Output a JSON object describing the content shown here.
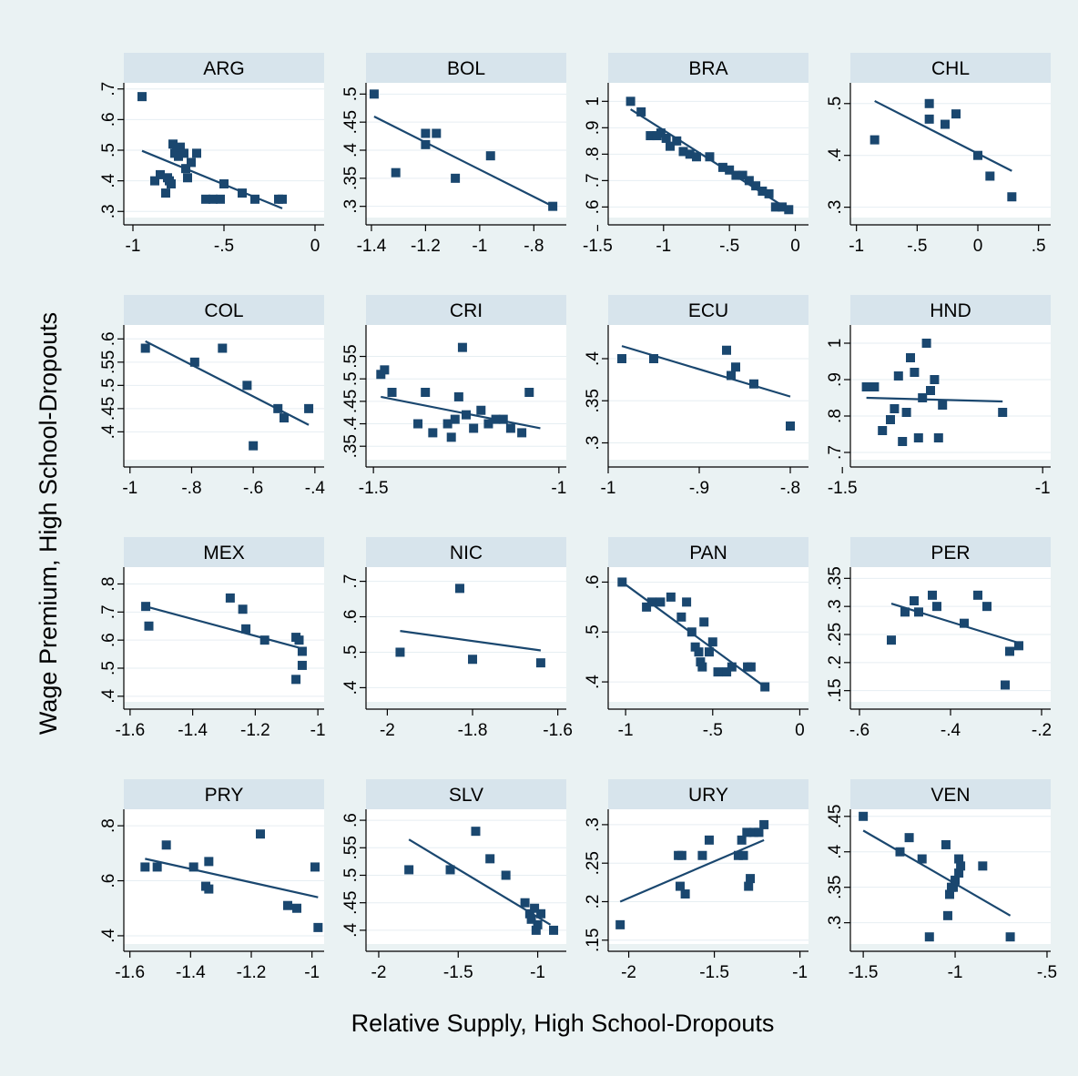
{
  "figure": {
    "ylabel": "Wage Premium, High School-Dropouts",
    "xlabel": "Relative Supply, High School-Dropouts",
    "colors": {
      "background": "#eaf2f3",
      "plot_bg": "#ffffff",
      "header_bg": "#d7e4ec",
      "marker": "#1a476f",
      "line": "#1a476f",
      "grid": "#e6eef2",
      "axis": "#000000"
    }
  },
  "chart_data": [
    {
      "type": "scatter",
      "title": "ARG",
      "xlim": [
        -1.05,
        0.05
      ],
      "ylim": [
        0.28,
        0.72
      ],
      "xticks": [
        -1,
        -0.5,
        0
      ],
      "xtick_labels": [
        "-1",
        "-.5",
        "0"
      ],
      "yticks": [
        0.3,
        0.4,
        0.5,
        0.6,
        0.7
      ],
      "ytick_labels": [
        ".3",
        ".4",
        ".5",
        ".6",
        ".7"
      ],
      "x": [
        -0.95,
        -0.88,
        -0.85,
        -0.82,
        -0.81,
        -0.8,
        -0.79,
        -0.78,
        -0.77,
        -0.76,
        -0.75,
        -0.74,
        -0.72,
        -0.71,
        -0.7,
        -0.68,
        -0.65,
        -0.6,
        -0.56,
        -0.52,
        -0.5,
        -0.4,
        -0.33,
        -0.2,
        -0.18
      ],
      "y": [
        0.675,
        0.4,
        0.42,
        0.36,
        0.41,
        0.4,
        0.39,
        0.52,
        0.49,
        0.5,
        0.48,
        0.51,
        0.49,
        0.44,
        0.41,
        0.46,
        0.49,
        0.34,
        0.34,
        0.34,
        0.39,
        0.36,
        0.34,
        0.34,
        0.34
      ],
      "fit": {
        "x": [
          -0.95,
          -0.18
        ],
        "y": [
          0.498,
          0.31
        ]
      }
    },
    {
      "type": "scatter",
      "title": "BOL",
      "xlim": [
        -1.42,
        -0.68
      ],
      "ylim": [
        0.28,
        0.52
      ],
      "xticks": [
        -1.4,
        -1.2,
        -1,
        -0.8
      ],
      "xtick_labels": [
        "-1.4",
        "-1.2",
        "-1",
        "-.8"
      ],
      "yticks": [
        0.3,
        0.35,
        0.4,
        0.45,
        0.5
      ],
      "ytick_labels": [
        ".3",
        ".35",
        ".4",
        ".45",
        ".5"
      ],
      "x": [
        -1.39,
        -1.31,
        -1.2,
        -1.2,
        -1.16,
        -1.09,
        -0.96,
        -0.73
      ],
      "y": [
        0.5,
        0.36,
        0.41,
        0.43,
        0.43,
        0.35,
        0.39,
        0.3
      ],
      "fit": {
        "x": [
          -1.39,
          -0.73
        ],
        "y": [
          0.46,
          0.3
        ]
      }
    },
    {
      "type": "scatter",
      "title": "BRA",
      "xlim": [
        -1.42,
        0.1
      ],
      "ylim": [
        0.56,
        1.07
      ],
      "xticks": [
        -1.5,
        -1,
        -0.5,
        0
      ],
      "xtick_labels": [
        "-1.5",
        "-1",
        "-.5",
        "0"
      ],
      "yticks": [
        0.6,
        0.7,
        0.8,
        0.9,
        1.0
      ],
      "ytick_labels": [
        ".6",
        ".7",
        ".8",
        ".9",
        "1"
      ],
      "x": [
        -1.25,
        -1.17,
        -1.1,
        -1.05,
        -1.02,
        -0.98,
        -0.95,
        -0.9,
        -0.85,
        -0.8,
        -0.75,
        -0.65,
        -0.55,
        -0.5,
        -0.45,
        -0.4,
        -0.35,
        -0.3,
        -0.25,
        -0.2,
        -0.15,
        -0.1,
        -0.05
      ],
      "y": [
        1.0,
        0.96,
        0.87,
        0.87,
        0.88,
        0.86,
        0.83,
        0.85,
        0.81,
        0.8,
        0.79,
        0.79,
        0.75,
        0.74,
        0.72,
        0.72,
        0.7,
        0.68,
        0.66,
        0.65,
        0.6,
        0.6,
        0.59
      ],
      "fit": {
        "x": [
          -1.25,
          -0.05
        ],
        "y": [
          0.97,
          0.59
        ]
      }
    },
    {
      "type": "scatter",
      "title": "CHL",
      "xlim": [
        -1.05,
        0.6
      ],
      "ylim": [
        0.28,
        0.54
      ],
      "xticks": [
        -1,
        -0.5,
        0,
        0.5
      ],
      "xtick_labels": [
        "-1",
        "-.5",
        "0",
        ".5"
      ],
      "yticks": [
        0.3,
        0.4,
        0.5
      ],
      "ytick_labels": [
        ".3",
        ".4",
        ".5"
      ],
      "x": [
        -0.85,
        -0.4,
        -0.4,
        -0.27,
        -0.18,
        0.0,
        0.1,
        0.28
      ],
      "y": [
        0.43,
        0.5,
        0.47,
        0.46,
        0.48,
        0.4,
        0.36,
        0.32
      ],
      "fit": {
        "x": [
          -0.85,
          0.28
        ],
        "y": [
          0.505,
          0.37
        ]
      }
    },
    {
      "type": "scatter",
      "title": "COL",
      "xlim": [
        -1.02,
        -0.37
      ],
      "ylim": [
        0.34,
        0.63
      ],
      "xticks": [
        -1,
        -0.8,
        -0.6,
        -0.4
      ],
      "xtick_labels": [
        "-1",
        "-.8",
        "-.6",
        "-.4"
      ],
      "yticks": [
        0.4,
        0.45,
        0.5,
        0.55,
        0.6
      ],
      "ytick_labels": [
        ".4",
        ".45",
        ".5",
        ".55",
        ".6"
      ],
      "x": [
        -0.95,
        -0.79,
        -0.7,
        -0.62,
        -0.6,
        -0.52,
        -0.5,
        -0.42
      ],
      "y": [
        0.58,
        0.55,
        0.58,
        0.5,
        0.37,
        0.45,
        0.43,
        0.45
      ],
      "fit": {
        "x": [
          -0.95,
          -0.42
        ],
        "y": [
          0.595,
          0.415
        ]
      }
    },
    {
      "type": "scatter",
      "title": "CRI",
      "xlim": [
        -1.52,
        -0.98
      ],
      "ylim": [
        0.32,
        0.62
      ],
      "xticks": [
        -1.5,
        -1
      ],
      "xtick_labels": [
        "-1.5",
        "-1"
      ],
      "yticks": [
        0.35,
        0.4,
        0.45,
        0.5,
        0.55
      ],
      "ytick_labels": [
        ".35",
        ".4",
        ".45",
        ".5",
        ".55"
      ],
      "x": [
        -1.48,
        -1.47,
        -1.45,
        -1.38,
        -1.36,
        -1.34,
        -1.3,
        -1.29,
        -1.28,
        -1.27,
        -1.26,
        -1.25,
        -1.23,
        -1.21,
        -1.19,
        -1.17,
        -1.15,
        -1.13,
        -1.1,
        -1.08
      ],
      "y": [
        0.51,
        0.52,
        0.47,
        0.4,
        0.47,
        0.38,
        0.4,
        0.37,
        0.41,
        0.46,
        0.57,
        0.42,
        0.39,
        0.43,
        0.4,
        0.41,
        0.41,
        0.39,
        0.38,
        0.47
      ],
      "fit": {
        "x": [
          -1.48,
          -1.05
        ],
        "y": [
          0.46,
          0.39
        ]
      }
    },
    {
      "type": "scatter",
      "title": "ECU",
      "xlim": [
        -1.0,
        -0.78
      ],
      "ylim": [
        0.28,
        0.44
      ],
      "xticks": [
        -1,
        -0.9,
        -0.8
      ],
      "xtick_labels": [
        "-1",
        "-.9",
        "-.8"
      ],
      "yticks": [
        0.3,
        0.35,
        0.4
      ],
      "ytick_labels": [
        ".3",
        ".35",
        ".4"
      ],
      "x": [
        -0.985,
        -0.95,
        -0.87,
        -0.865,
        -0.86,
        -0.84,
        -0.8
      ],
      "y": [
        0.4,
        0.4,
        0.41,
        0.38,
        0.39,
        0.37,
        0.32
      ],
      "fit": {
        "x": [
          -0.985,
          -0.8
        ],
        "y": [
          0.415,
          0.355
        ]
      }
    },
    {
      "type": "scatter",
      "title": "HND",
      "xlim": [
        -1.48,
        -0.98
      ],
      "ylim": [
        0.68,
        1.05
      ],
      "xticks": [
        -1.5,
        -1
      ],
      "xtick_labels": [
        "-1.5",
        "-1"
      ],
      "yticks": [
        0.7,
        0.8,
        0.9,
        1.0
      ],
      "ytick_labels": [
        ".7",
        ".8",
        ".9",
        "1"
      ],
      "x": [
        -1.44,
        -1.42,
        -1.4,
        -1.38,
        -1.37,
        -1.36,
        -1.35,
        -1.34,
        -1.33,
        -1.32,
        -1.31,
        -1.3,
        -1.29,
        -1.28,
        -1.27,
        -1.26,
        -1.25,
        -1.1
      ],
      "y": [
        0.88,
        0.88,
        0.76,
        0.79,
        0.82,
        0.91,
        0.73,
        0.81,
        0.96,
        0.92,
        0.74,
        0.85,
        1.0,
        0.87,
        0.9,
        0.74,
        0.83,
        0.81
      ],
      "fit": {
        "x": [
          -1.44,
          -1.1
        ],
        "y": [
          0.85,
          0.84
        ]
      }
    },
    {
      "type": "scatter",
      "title": "MEX",
      "xlim": [
        -1.62,
        -0.98
      ],
      "ylim": [
        0.38,
        0.86
      ],
      "xticks": [
        -1.6,
        -1.4,
        -1.2,
        -1
      ],
      "xtick_labels": [
        "-1.6",
        "-1.4",
        "-1.2",
        "-1"
      ],
      "yticks": [
        0.4,
        0.5,
        0.6,
        0.7,
        0.8
      ],
      "ytick_labels": [
        ".4",
        ".5",
        ".6",
        ".7",
        ".8"
      ],
      "x": [
        -1.55,
        -1.54,
        -1.28,
        -1.24,
        -1.23,
        -1.17,
        -1.07,
        -1.06,
        -1.05,
        -1.05,
        -1.07
      ],
      "y": [
        0.72,
        0.65,
        0.75,
        0.71,
        0.64,
        0.6,
        0.61,
        0.6,
        0.56,
        0.51,
        0.46
      ],
      "fit": {
        "x": [
          -1.55,
          -1.05
        ],
        "y": [
          0.72,
          0.57
        ]
      }
    },
    {
      "type": "scatter",
      "title": "NIC",
      "xlim": [
        -2.05,
        -1.58
      ],
      "ylim": [
        0.36,
        0.74
      ],
      "xticks": [
        -2,
        -1.8,
        -1.6
      ],
      "xtick_labels": [
        "-2",
        "-1.8",
        "-1.6"
      ],
      "yticks": [
        0.4,
        0.5,
        0.6,
        0.7
      ],
      "ytick_labels": [
        ".4",
        ".5",
        ".6",
        ".7"
      ],
      "x": [
        -1.97,
        -1.83,
        -1.8,
        -1.64
      ],
      "y": [
        0.5,
        0.68,
        0.48,
        0.47
      ],
      "fit": {
        "x": [
          -1.97,
          -1.64
        ],
        "y": [
          0.56,
          0.505
        ]
      }
    },
    {
      "type": "scatter",
      "title": "PAN",
      "xlim": [
        -1.1,
        0.05
      ],
      "ylim": [
        0.36,
        0.63
      ],
      "xticks": [
        -1,
        -0.5,
        0
      ],
      "xtick_labels": [
        "-1",
        "-.5",
        "0"
      ],
      "yticks": [
        0.4,
        0.5,
        0.6
      ],
      "ytick_labels": [
        ".4",
        ".5",
        ".6"
      ],
      "x": [
        -1.02,
        -0.88,
        -0.85,
        -0.8,
        -0.74,
        -0.68,
        -0.65,
        -0.62,
        -0.6,
        -0.58,
        -0.57,
        -0.56,
        -0.55,
        -0.52,
        -0.5,
        -0.47,
        -0.42,
        -0.39,
        -0.3,
        -0.28,
        -0.2
      ],
      "y": [
        0.6,
        0.55,
        0.56,
        0.56,
        0.57,
        0.53,
        0.56,
        0.5,
        0.47,
        0.46,
        0.44,
        0.43,
        0.52,
        0.46,
        0.48,
        0.42,
        0.42,
        0.43,
        0.43,
        0.43,
        0.39
      ],
      "fit": {
        "x": [
          -1.02,
          -0.2
        ],
        "y": [
          0.6,
          0.39
        ]
      }
    },
    {
      "type": "scatter",
      "title": "PER",
      "xlim": [
        -0.62,
        -0.18
      ],
      "ylim": [
        0.13,
        0.37
      ],
      "xticks": [
        -0.6,
        -0.4,
        -0.2
      ],
      "xtick_labels": [
        "-.6",
        "-.4",
        "-.2"
      ],
      "yticks": [
        0.15,
        0.2,
        0.25,
        0.3,
        0.35
      ],
      "ytick_labels": [
        ".15",
        ".2",
        ".25",
        ".3",
        ".35"
      ],
      "x": [
        -0.53,
        -0.5,
        -0.48,
        -0.47,
        -0.44,
        -0.43,
        -0.37,
        -0.34,
        -0.32,
        -0.28,
        -0.27,
        -0.25
      ],
      "y": [
        0.24,
        0.29,
        0.31,
        0.29,
        0.32,
        0.3,
        0.27,
        0.32,
        0.3,
        0.16,
        0.22,
        0.23
      ],
      "fit": {
        "x": [
          -0.53,
          -0.25
        ],
        "y": [
          0.305,
          0.235
        ]
      }
    },
    {
      "type": "scatter",
      "title": "PRY",
      "xlim": [
        -1.62,
        -0.96
      ],
      "ylim": [
        0.37,
        0.86
      ],
      "xticks": [
        -1.6,
        -1.4,
        -1.2,
        -1
      ],
      "xtick_labels": [
        "-1.6",
        "-1.4",
        "-1.2",
        "-1"
      ],
      "yticks": [
        0.4,
        0.6,
        0.8
      ],
      "ytick_labels": [
        ".4",
        ".6",
        ".8"
      ],
      "x": [
        -1.55,
        -1.51,
        -1.48,
        -1.39,
        -1.35,
        -1.34,
        -1.34,
        -1.17,
        -1.08,
        -1.05,
        -0.99,
        -0.98
      ],
      "y": [
        0.65,
        0.65,
        0.73,
        0.65,
        0.58,
        0.57,
        0.67,
        0.77,
        0.51,
        0.5,
        0.65,
        0.43
      ],
      "fit": {
        "x": [
          -1.55,
          -0.98
        ],
        "y": [
          0.68,
          0.54
        ]
      }
    },
    {
      "type": "scatter",
      "title": "SLV",
      "xlim": [
        -2.08,
        -0.82
      ],
      "ylim": [
        0.375,
        0.62
      ],
      "xticks": [
        -2,
        -1.5,
        -1
      ],
      "xtick_labels": [
        "-2",
        "-1.5",
        "-1"
      ],
      "yticks": [
        0.4,
        0.45,
        0.5,
        0.55,
        0.6
      ],
      "ytick_labels": [
        ".4",
        ".45",
        ".5",
        ".55",
        ".6"
      ],
      "x": [
        -1.81,
        -1.55,
        -1.39,
        -1.3,
        -1.2,
        -1.08,
        -1.05,
        -1.04,
        -1.02,
        -1.01,
        -1.0,
        -0.98,
        -0.9
      ],
      "y": [
        0.51,
        0.51,
        0.58,
        0.53,
        0.5,
        0.45,
        0.43,
        0.42,
        0.44,
        0.4,
        0.41,
        0.43,
        0.4
      ],
      "fit": {
        "x": [
          -1.81,
          -0.92
        ],
        "y": [
          0.565,
          0.41
        ]
      }
    },
    {
      "type": "scatter",
      "title": "URY",
      "xlim": [
        -2.12,
        -0.95
      ],
      "ylim": [
        0.145,
        0.32
      ],
      "xticks": [
        -2,
        -1.5,
        -1
      ],
      "xtick_labels": [
        "-2",
        "-1.5",
        "-1"
      ],
      "yticks": [
        0.15,
        0.2,
        0.25,
        0.3
      ],
      "ytick_labels": [
        ".15",
        ".2",
        ".25",
        ".3"
      ],
      "x": [
        -2.05,
        -1.71,
        -1.7,
        -1.69,
        -1.67,
        -1.57,
        -1.53,
        -1.36,
        -1.34,
        -1.33,
        -1.31,
        -1.3,
        -1.29,
        -1.27,
        -1.24,
        -1.21
      ],
      "y": [
        0.17,
        0.26,
        0.22,
        0.26,
        0.21,
        0.26,
        0.28,
        0.26,
        0.28,
        0.26,
        0.29,
        0.22,
        0.23,
        0.29,
        0.29,
        0.3
      ],
      "fit": {
        "x": [
          -2.05,
          -1.21
        ],
        "y": [
          0.2,
          0.28
        ]
      }
    },
    {
      "type": "scatter",
      "title": "VEN",
      "xlim": [
        -1.57,
        -0.48
      ],
      "ylim": [
        0.27,
        0.46
      ],
      "xticks": [
        -1.5,
        -1,
        -0.5
      ],
      "xtick_labels": [
        "-1.5",
        "-1",
        "-.5"
      ],
      "yticks": [
        0.3,
        0.35,
        0.4,
        0.45
      ],
      "ytick_labels": [
        ".3",
        ".35",
        ".4",
        ".45"
      ],
      "x": [
        -1.5,
        -1.3,
        -1.25,
        -1.18,
        -1.14,
        -1.05,
        -1.04,
        -1.03,
        -1.02,
        -1.01,
        -1.0,
        -0.98,
        -0.98,
        -0.97,
        -0.85,
        -0.7
      ],
      "y": [
        0.45,
        0.4,
        0.42,
        0.39,
        0.28,
        0.41,
        0.31,
        0.34,
        0.35,
        0.35,
        0.36,
        0.37,
        0.39,
        0.38,
        0.38,
        0.28
      ],
      "fit": {
        "x": [
          -1.5,
          -0.7
        ],
        "y": [
          0.43,
          0.31
        ]
      }
    }
  ]
}
